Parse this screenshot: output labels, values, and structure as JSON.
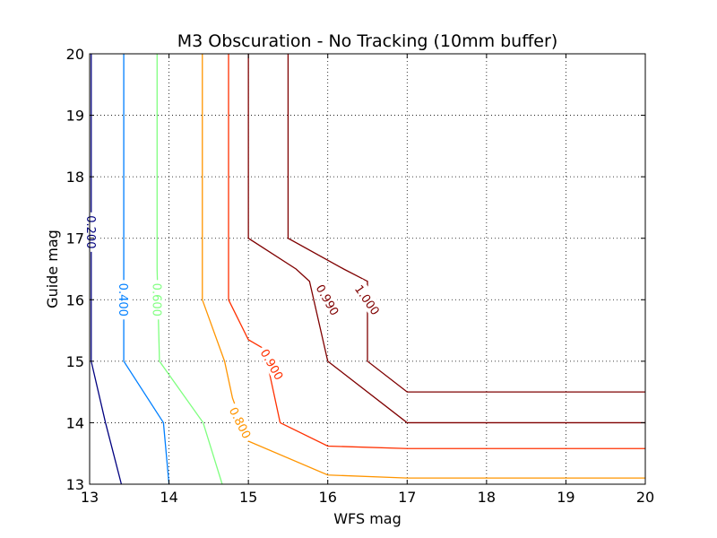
{
  "chart_data": {
    "type": "contour",
    "title": "M3 Obscuration - No Tracking (10mm buffer)",
    "xlabel": "WFS mag",
    "ylabel": "Guide mag",
    "xlim": [
      13,
      20
    ],
    "ylim": [
      13,
      20
    ],
    "xticks": [
      "13",
      "14",
      "15",
      "16",
      "17",
      "18",
      "19",
      "20"
    ],
    "yticks": [
      "13",
      "14",
      "15",
      "16",
      "17",
      "18",
      "19",
      "20"
    ],
    "grid": true,
    "grid_style": "dotted",
    "contours": [
      {
        "level": "0.200",
        "color": "#00007f",
        "points": [
          [
            13.02,
            20
          ],
          [
            13.02,
            17.4
          ],
          [
            13.02,
            15
          ],
          [
            13.2,
            14
          ],
          [
            13.4,
            13
          ]
        ],
        "label_at": [
          13.02,
          17.1
        ],
        "label_rotation": 90
      },
      {
        "level": "0.400",
        "color": "#007fff",
        "points": [
          [
            13.43,
            20
          ],
          [
            13.43,
            16.5
          ],
          [
            13.43,
            15
          ],
          [
            13.93,
            14
          ],
          [
            14.0,
            13
          ]
        ],
        "label_at": [
          13.43,
          16.0
        ],
        "label_rotation": 90
      },
      {
        "level": "0.600",
        "color": "#7fff7f",
        "points": [
          [
            13.85,
            20
          ],
          [
            13.85,
            16.5
          ],
          [
            13.88,
            15
          ],
          [
            14.43,
            14
          ],
          [
            14.67,
            13
          ]
        ],
        "label_at": [
          13.85,
          16.0
        ],
        "label_rotation": 90
      },
      {
        "level": "0.800",
        "color": "#ff9500",
        "points": [
          [
            14.42,
            20
          ],
          [
            14.42,
            16
          ],
          [
            14.7,
            15
          ],
          [
            14.8,
            14.4
          ],
          [
            15.0,
            13.7
          ],
          [
            16.0,
            13.15
          ],
          [
            17,
            13.1
          ],
          [
            20,
            13.1
          ]
        ],
        "label_at": [
          14.9,
          14.0
        ],
        "label_rotation": 63
      },
      {
        "level": "0.900",
        "color": "#ff3000",
        "points": [
          [
            14.75,
            20
          ],
          [
            14.75,
            16
          ],
          [
            15.0,
            15.35
          ],
          [
            15.2,
            15.2
          ],
          [
            15.4,
            14
          ],
          [
            16.0,
            13.62
          ],
          [
            17,
            13.58
          ],
          [
            20,
            13.58
          ]
        ],
        "label_at": [
          15.3,
          14.95
        ],
        "label_rotation": 60
      },
      {
        "level": "0.990",
        "color": "#7f0000",
        "points": [
          [
            15,
            20
          ],
          [
            15,
            17
          ],
          [
            15.6,
            16.5
          ],
          [
            15.77,
            16.3
          ],
          [
            16,
            15
          ],
          [
            17,
            14
          ],
          [
            20,
            14
          ]
        ],
        "label_at": [
          16,
          16
        ],
        "label_rotation": 60
      },
      {
        "level": "1.000",
        "color": "#7f0000",
        "points": [
          [
            15.5,
            20
          ],
          [
            15.5,
            17
          ],
          [
            16.2,
            16.5
          ],
          [
            16.5,
            16.3
          ],
          [
            16.5,
            15
          ],
          [
            17,
            14.5
          ],
          [
            20,
            14.5
          ]
        ],
        "label_at": [
          16.5,
          16
        ],
        "label_rotation": 55
      }
    ]
  }
}
